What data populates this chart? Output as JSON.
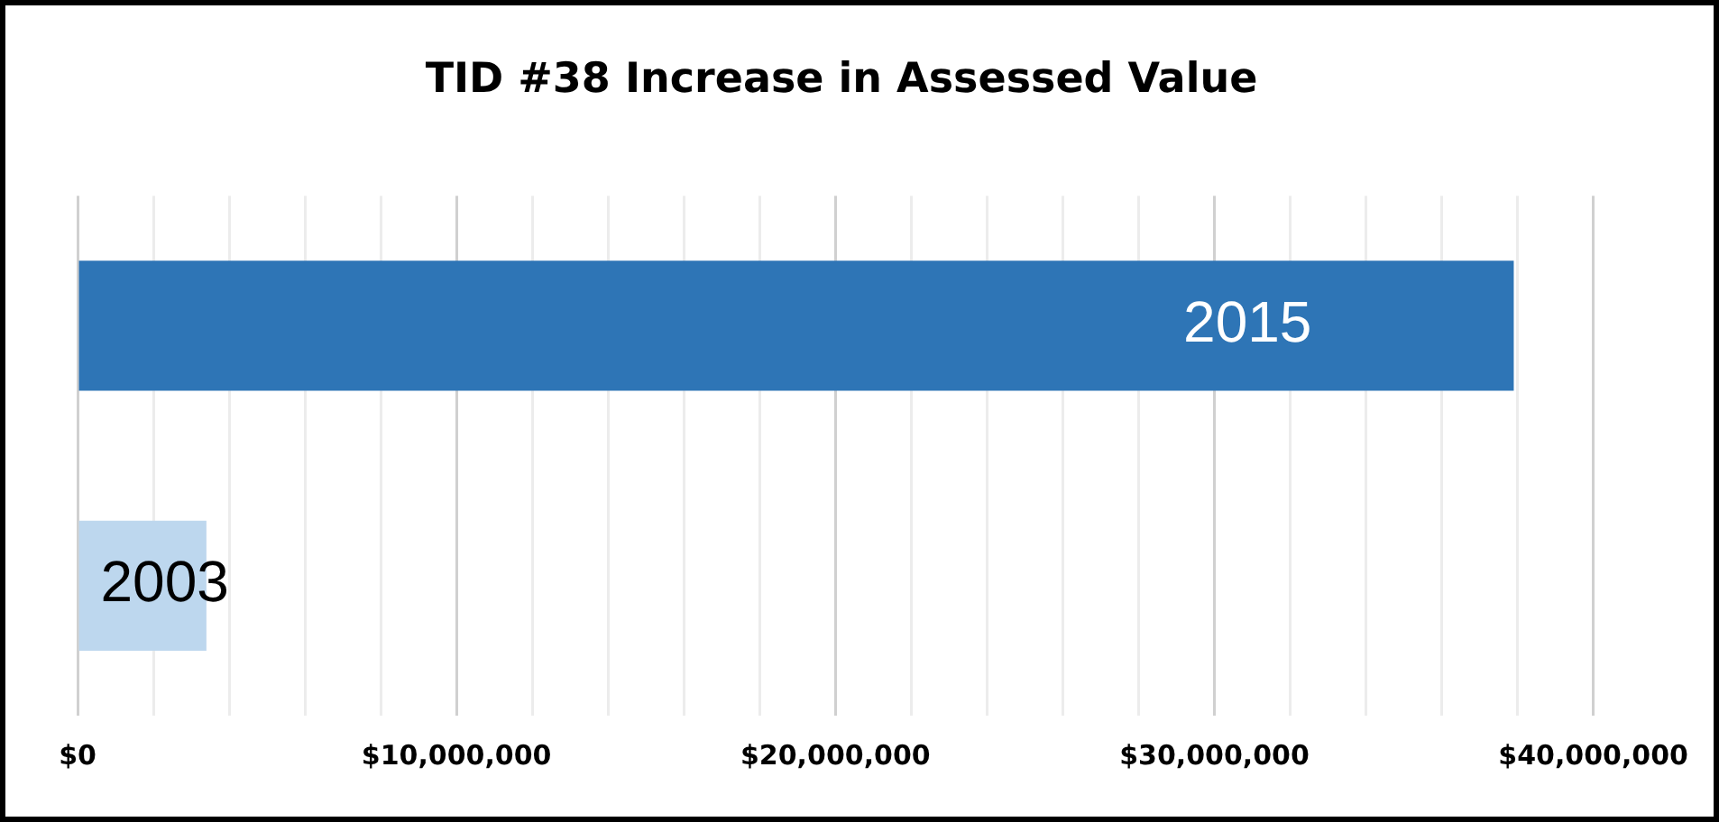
{
  "chart_data": {
    "type": "bar",
    "orientation": "horizontal",
    "title": "TID #38 Increase in Assessed Value",
    "categories": [
      "2015",
      "2003"
    ],
    "values": [
      37900000,
      3400000
    ],
    "colors": [
      "#2e75b6",
      "#bdd7ee"
    ],
    "xlim": [
      0,
      40000000
    ],
    "xticks": [
      {
        "value": 0,
        "label": "$0"
      },
      {
        "value": 2000000,
        "label": null
      },
      {
        "value": 4000000,
        "label": null
      },
      {
        "value": 6000000,
        "label": null
      },
      {
        "value": 8000000,
        "label": null
      },
      {
        "value": 10000000,
        "label": "$10,000,000"
      },
      {
        "value": 12000000,
        "label": null
      },
      {
        "value": 14000000,
        "label": null
      },
      {
        "value": 16000000,
        "label": null
      },
      {
        "value": 18000000,
        "label": null
      },
      {
        "value": 20000000,
        "label": "$20,000,000"
      },
      {
        "value": 22000000,
        "label": null
      },
      {
        "value": 24000000,
        "label": null
      },
      {
        "value": 26000000,
        "label": null
      },
      {
        "value": 28000000,
        "label": null
      },
      {
        "value": 30000000,
        "label": "$30,000,000"
      },
      {
        "value": 32000000,
        "label": null
      },
      {
        "value": 34000000,
        "label": null
      },
      {
        "value": 36000000,
        "label": null
      },
      {
        "value": 38000000,
        "label": null
      },
      {
        "value": 40000000,
        "label": "$40,000,000"
      }
    ],
    "grid": true,
    "legend": false
  }
}
